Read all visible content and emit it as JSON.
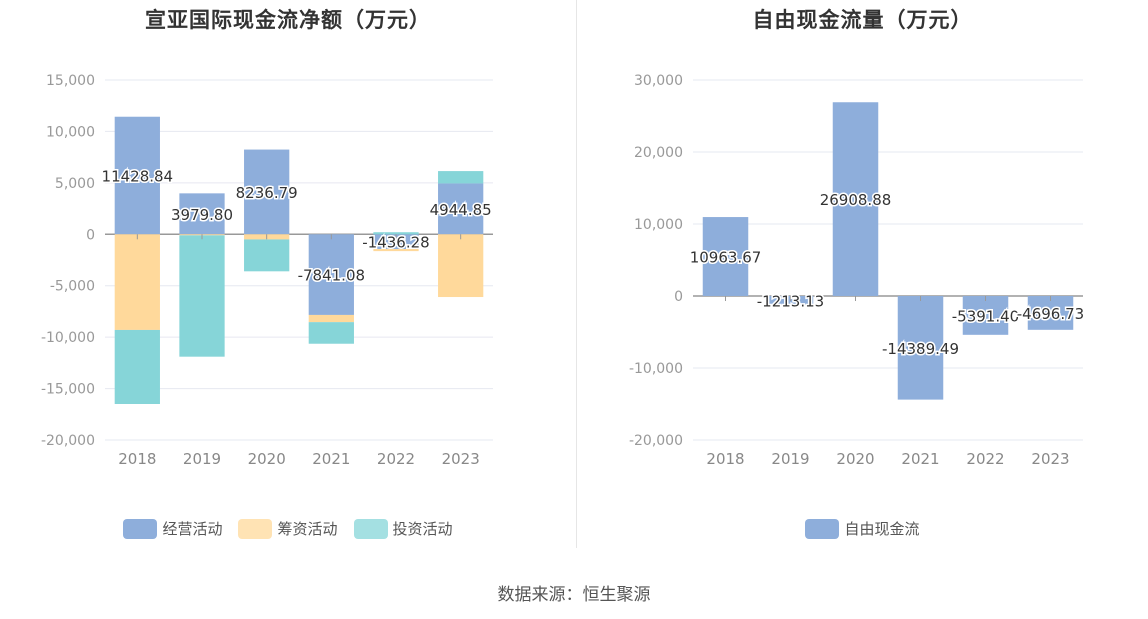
{
  "chart_data": [
    {
      "type": "bar",
      "stacked": true,
      "title": "宣亚国际现金流净额（万元）",
      "categories": [
        "2018",
        "2019",
        "2020",
        "2021",
        "2022",
        "2023"
      ],
      "ylim": [
        -20000,
        15000
      ],
      "yticks": [
        15000,
        10000,
        5000,
        0,
        -5000,
        -10000,
        -15000,
        -20000
      ],
      "ytick_labels": [
        "15,000",
        "10,000",
        "5,000",
        "0",
        "-5,000",
        "-10,000",
        "-15,000",
        "-20,000"
      ],
      "grid": true,
      "legend_position": "bottom",
      "series": [
        {
          "name": "经营活动",
          "color": "#8eaedb",
          "values": [
            11428.84,
            3979.8,
            8236.79,
            -7841.08,
            -1436.28,
            4944.85
          ],
          "labels": [
            "11428.84",
            "3979.80",
            "8236.79",
            "-7841.08",
            "-1436.28",
            "4944.85"
          ]
        },
        {
          "name": "筹资活动",
          "color": "#ffd99b",
          "values": [
            -9300,
            -100,
            -500,
            -700,
            -200,
            -6100
          ]
        },
        {
          "name": "投资活动",
          "color": "#86d5d8",
          "values": [
            -7200,
            -11800,
            -3100,
            -2100,
            200,
            1200
          ]
        }
      ]
    },
    {
      "type": "bar",
      "title": "自由现金流量（万元）",
      "categories": [
        "2018",
        "2019",
        "2020",
        "2021",
        "2022",
        "2023"
      ],
      "ylim": [
        -20000,
        30000
      ],
      "yticks": [
        30000,
        20000,
        10000,
        0,
        -10000,
        -20000
      ],
      "ytick_labels": [
        "30,000",
        "20,000",
        "10,000",
        "0",
        "-10,000",
        "-20,000"
      ],
      "grid": true,
      "legend_position": "bottom",
      "series": [
        {
          "name": "自由现金流",
          "color": "#8eaedb",
          "values": [
            10963.67,
            -1213.13,
            26908.88,
            -14389.49,
            -5391.4,
            -4696.73
          ],
          "labels": [
            "10963.67",
            "-1213.13",
            "26908.88",
            "-14389.49",
            "-5391.40",
            "-4696.73"
          ]
        }
      ]
    }
  ],
  "source_text": "数据来源：恒生聚源"
}
